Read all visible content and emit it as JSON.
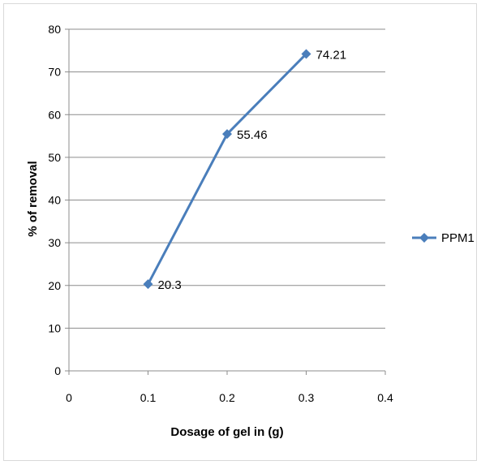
{
  "chart_data": {
    "type": "line",
    "title": "",
    "xlabel": "Dosage  of gel in (g)",
    "ylabel": "% of removal",
    "xlim": [
      0,
      0.4
    ],
    "ylim": [
      0,
      80
    ],
    "x_ticks": [
      "0",
      "0.1",
      "0.2",
      "0.3",
      "0.4"
    ],
    "y_ticks": [
      "0",
      "10",
      "20",
      "30",
      "40",
      "50",
      "60",
      "70",
      "80"
    ],
    "grid": "horizontal",
    "legend_position": "right",
    "series": [
      {
        "name": "PPM1",
        "color": "#4a7ebb",
        "marker": "diamond",
        "x": [
          0.1,
          0.2,
          0.3
        ],
        "y": [
          20.3,
          55.46,
          74.21
        ],
        "labels": [
          "20.3",
          "55.46",
          "74.21"
        ]
      }
    ]
  }
}
